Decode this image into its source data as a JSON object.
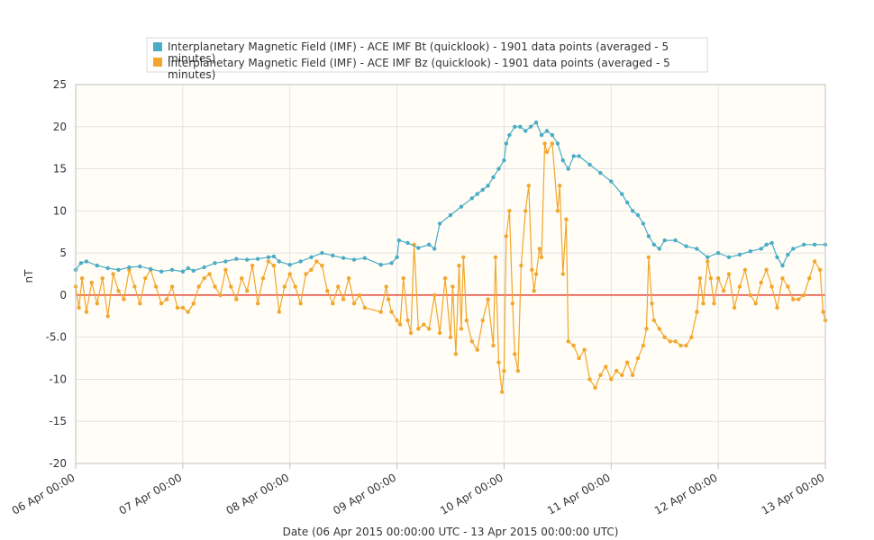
{
  "chart_data": {
    "type": "line",
    "title": "",
    "xlabel": "Date (06 Apr 2015 00:00:00 UTC - 13 Apr 2015 00:00:00 UTC)",
    "ylabel": "nT",
    "ylim": [
      -20,
      25
    ],
    "xlim_days": [
      0,
      7
    ],
    "grid": true,
    "legend_position": "top",
    "x_tick_labels": [
      "06 Apr 00:00",
      "07 Apr 00:00",
      "08 Apr 00:00",
      "09 Apr 00:00",
      "10 Apr 00:00",
      "11 Apr 00:00",
      "12 Apr 00:00",
      "13 Apr 00:00"
    ],
    "y_tick_labels": [
      "25",
      "20",
      "15",
      "10",
      "5",
      "0",
      "-5.0",
      "-10",
      "-15",
      "-20"
    ],
    "y_tick_values": [
      25,
      20,
      15,
      10,
      5,
      0,
      -5,
      -10,
      -15,
      -20
    ],
    "zero_line_color": "#e8463a",
    "plot_background": "#fffdf5",
    "series": [
      {
        "name": "Interplanetary Magnetic Field (IMF) - ACE IMF Bt (quicklook) - 1901 data points (averaged - 5 minutes)",
        "color": "#4aacc5",
        "points": [
          [
            0.0,
            3.0
          ],
          [
            0.05,
            3.8
          ],
          [
            0.1,
            4.0
          ],
          [
            0.2,
            3.5
          ],
          [
            0.3,
            3.2
          ],
          [
            0.4,
            3.0
          ],
          [
            0.5,
            3.3
          ],
          [
            0.6,
            3.4
          ],
          [
            0.7,
            3.1
          ],
          [
            0.8,
            2.8
          ],
          [
            0.9,
            3.0
          ],
          [
            1.0,
            2.8
          ],
          [
            1.05,
            3.2
          ],
          [
            1.1,
            2.9
          ],
          [
            1.2,
            3.3
          ],
          [
            1.3,
            3.8
          ],
          [
            1.4,
            4.0
          ],
          [
            1.5,
            4.3
          ],
          [
            1.6,
            4.2
          ],
          [
            1.7,
            4.3
          ],
          [
            1.8,
            4.5
          ],
          [
            1.85,
            4.6
          ],
          [
            1.9,
            4.0
          ],
          [
            2.0,
            3.6
          ],
          [
            2.1,
            4.0
          ],
          [
            2.2,
            4.5
          ],
          [
            2.3,
            5.0
          ],
          [
            2.4,
            4.7
          ],
          [
            2.5,
            4.4
          ],
          [
            2.6,
            4.2
          ],
          [
            2.7,
            4.4
          ],
          [
            2.85,
            3.6
          ],
          [
            2.95,
            3.8
          ],
          [
            3.0,
            4.5
          ],
          [
            3.02,
            6.5
          ],
          [
            3.1,
            6.2
          ],
          [
            3.2,
            5.6
          ],
          [
            3.3,
            6.0
          ],
          [
            3.35,
            5.5
          ],
          [
            3.4,
            8.5
          ],
          [
            3.5,
            9.5
          ],
          [
            3.6,
            10.5
          ],
          [
            3.7,
            11.5
          ],
          [
            3.75,
            12.0
          ],
          [
            3.8,
            12.5
          ],
          [
            3.85,
            13.0
          ],
          [
            3.9,
            14.0
          ],
          [
            3.95,
            15.0
          ],
          [
            4.0,
            16.0
          ],
          [
            4.02,
            18.0
          ],
          [
            4.05,
            19.0
          ],
          [
            4.1,
            20.0
          ],
          [
            4.15,
            20.0
          ],
          [
            4.2,
            19.5
          ],
          [
            4.25,
            20.0
          ],
          [
            4.3,
            20.5
          ],
          [
            4.35,
            19.0
          ],
          [
            4.4,
            19.5
          ],
          [
            4.45,
            19.0
          ],
          [
            4.5,
            18.0
          ],
          [
            4.55,
            16.0
          ],
          [
            4.6,
            15.0
          ],
          [
            4.65,
            16.5
          ],
          [
            4.7,
            16.5
          ],
          [
            4.8,
            15.5
          ],
          [
            4.9,
            14.5
          ],
          [
            5.0,
            13.5
          ],
          [
            5.1,
            12.0
          ],
          [
            5.15,
            11.0
          ],
          [
            5.2,
            10.0
          ],
          [
            5.25,
            9.5
          ],
          [
            5.3,
            8.5
          ],
          [
            5.35,
            7.0
          ],
          [
            5.4,
            6.0
          ],
          [
            5.45,
            5.5
          ],
          [
            5.5,
            6.5
          ],
          [
            5.6,
            6.5
          ],
          [
            5.7,
            5.8
          ],
          [
            5.8,
            5.5
          ],
          [
            5.9,
            4.5
          ],
          [
            6.0,
            5.0
          ],
          [
            6.1,
            4.5
          ],
          [
            6.2,
            4.8
          ],
          [
            6.3,
            5.2
          ],
          [
            6.4,
            5.5
          ],
          [
            6.45,
            6.0
          ],
          [
            6.5,
            6.2
          ],
          [
            6.55,
            4.5
          ],
          [
            6.6,
            3.5
          ],
          [
            6.65,
            4.8
          ],
          [
            6.7,
            5.5
          ],
          [
            6.8,
            6.0
          ],
          [
            6.9,
            6.0
          ],
          [
            7.0,
            6.0
          ]
        ]
      },
      {
        "name": "Interplanetary Magnetic Field (IMF) - ACE IMF Bz (quicklook) - 1901 data points (averaged - 5 minutes)",
        "color": "#f2a62c",
        "points": [
          [
            0.0,
            1.0
          ],
          [
            0.03,
            -1.5
          ],
          [
            0.06,
            2.0
          ],
          [
            0.1,
            -2.0
          ],
          [
            0.15,
            1.5
          ],
          [
            0.2,
            -1.0
          ],
          [
            0.25,
            2.0
          ],
          [
            0.3,
            -2.5
          ],
          [
            0.35,
            2.5
          ],
          [
            0.4,
            0.5
          ],
          [
            0.45,
            -0.5
          ],
          [
            0.5,
            3.0
          ],
          [
            0.55,
            1.0
          ],
          [
            0.6,
            -1.0
          ],
          [
            0.65,
            2.0
          ],
          [
            0.7,
            3.0
          ],
          [
            0.75,
            1.0
          ],
          [
            0.8,
            -1.0
          ],
          [
            0.85,
            -0.5
          ],
          [
            0.9,
            1.0
          ],
          [
            0.95,
            -1.5
          ],
          [
            1.0,
            -1.5
          ],
          [
            1.05,
            -2.0
          ],
          [
            1.1,
            -1.0
          ],
          [
            1.15,
            1.0
          ],
          [
            1.2,
            2.0
          ],
          [
            1.25,
            2.5
          ],
          [
            1.3,
            1.0
          ],
          [
            1.35,
            0.0
          ],
          [
            1.4,
            3.0
          ],
          [
            1.45,
            1.0
          ],
          [
            1.5,
            -0.5
          ],
          [
            1.55,
            2.0
          ],
          [
            1.6,
            0.5
          ],
          [
            1.65,
            3.5
          ],
          [
            1.7,
            -1.0
          ],
          [
            1.75,
            2.0
          ],
          [
            1.8,
            4.0
          ],
          [
            1.85,
            3.5
          ],
          [
            1.9,
            -2.0
          ],
          [
            1.95,
            1.0
          ],
          [
            2.0,
            2.5
          ],
          [
            2.05,
            1.0
          ],
          [
            2.1,
            -1.0
          ],
          [
            2.15,
            2.5
          ],
          [
            2.2,
            3.0
          ],
          [
            2.25,
            4.0
          ],
          [
            2.3,
            3.5
          ],
          [
            2.35,
            0.5
          ],
          [
            2.4,
            -1.0
          ],
          [
            2.45,
            1.0
          ],
          [
            2.5,
            -0.5
          ],
          [
            2.55,
            2.0
          ],
          [
            2.6,
            -1.0
          ],
          [
            2.65,
            0.0
          ],
          [
            2.7,
            -1.5
          ],
          [
            2.85,
            -2.0
          ],
          [
            2.9,
            1.0
          ],
          [
            2.92,
            -0.5
          ],
          [
            2.95,
            -2.0
          ],
          [
            3.0,
            -3.0
          ],
          [
            3.03,
            -3.5
          ],
          [
            3.06,
            2.0
          ],
          [
            3.1,
            -3.0
          ],
          [
            3.13,
            -4.5
          ],
          [
            3.16,
            6.0
          ],
          [
            3.2,
            -4.0
          ],
          [
            3.25,
            -3.5
          ],
          [
            3.3,
            -4.0
          ],
          [
            3.35,
            0.0
          ],
          [
            3.4,
            -4.5
          ],
          [
            3.45,
            2.0
          ],
          [
            3.5,
            -5.0
          ],
          [
            3.52,
            1.0
          ],
          [
            3.55,
            -7.0
          ],
          [
            3.58,
            3.5
          ],
          [
            3.6,
            -4.0
          ],
          [
            3.62,
            4.5
          ],
          [
            3.65,
            -3.0
          ],
          [
            3.7,
            -5.5
          ],
          [
            3.75,
            -6.5
          ],
          [
            3.8,
            -3.0
          ],
          [
            3.85,
            -0.5
          ],
          [
            3.9,
            -6.0
          ],
          [
            3.92,
            4.5
          ],
          [
            3.95,
            -8.0
          ],
          [
            3.98,
            -11.5
          ],
          [
            4.0,
            -9.0
          ],
          [
            4.02,
            7.0
          ],
          [
            4.05,
            10.0
          ],
          [
            4.08,
            -1.0
          ],
          [
            4.1,
            -7.0
          ],
          [
            4.13,
            -9.0
          ],
          [
            4.16,
            3.5
          ],
          [
            4.2,
            10.0
          ],
          [
            4.23,
            13.0
          ],
          [
            4.26,
            3.0
          ],
          [
            4.28,
            0.5
          ],
          [
            4.3,
            2.5
          ],
          [
            4.33,
            5.5
          ],
          [
            4.35,
            4.5
          ],
          [
            4.38,
            18.0
          ],
          [
            4.4,
            17.0
          ],
          [
            4.45,
            18.0
          ],
          [
            4.5,
            10.0
          ],
          [
            4.52,
            13.0
          ],
          [
            4.55,
            2.5
          ],
          [
            4.58,
            9.0
          ],
          [
            4.6,
            -5.5
          ],
          [
            4.65,
            -6.0
          ],
          [
            4.7,
            -7.5
          ],
          [
            4.75,
            -6.5
          ],
          [
            4.8,
            -10.0
          ],
          [
            4.85,
            -11.0
          ],
          [
            4.9,
            -9.5
          ],
          [
            4.95,
            -8.5
          ],
          [
            5.0,
            -10.0
          ],
          [
            5.05,
            -9.0
          ],
          [
            5.1,
            -9.5
          ],
          [
            5.15,
            -8.0
          ],
          [
            5.2,
            -9.5
          ],
          [
            5.25,
            -7.5
          ],
          [
            5.3,
            -6.0
          ],
          [
            5.33,
            -4.0
          ],
          [
            5.35,
            4.5
          ],
          [
            5.38,
            -1.0
          ],
          [
            5.4,
            -3.0
          ],
          [
            5.45,
            -4.0
          ],
          [
            5.5,
            -5.0
          ],
          [
            5.55,
            -5.5
          ],
          [
            5.6,
            -5.5
          ],
          [
            5.65,
            -6.0
          ],
          [
            5.7,
            -6.0
          ],
          [
            5.75,
            -5.0
          ],
          [
            5.8,
            -2.0
          ],
          [
            5.83,
            2.0
          ],
          [
            5.86,
            -1.0
          ],
          [
            5.9,
            4.0
          ],
          [
            5.93,
            2.0
          ],
          [
            5.96,
            -1.0
          ],
          [
            6.0,
            2.0
          ],
          [
            6.05,
            0.5
          ],
          [
            6.1,
            2.5
          ],
          [
            6.15,
            -1.5
          ],
          [
            6.2,
            1.0
          ],
          [
            6.25,
            3.0
          ],
          [
            6.3,
            0.0
          ],
          [
            6.35,
            -1.0
          ],
          [
            6.4,
            1.5
          ],
          [
            6.45,
            3.0
          ],
          [
            6.5,
            1.0
          ],
          [
            6.55,
            -1.5
          ],
          [
            6.6,
            2.0
          ],
          [
            6.65,
            1.0
          ],
          [
            6.7,
            -0.5
          ],
          [
            6.75,
            -0.5
          ],
          [
            6.8,
            0.0
          ],
          [
            6.85,
            2.0
          ],
          [
            6.9,
            4.0
          ],
          [
            6.95,
            3.0
          ],
          [
            6.98,
            -2.0
          ],
          [
            7.0,
            -3.0
          ]
        ]
      }
    ]
  }
}
